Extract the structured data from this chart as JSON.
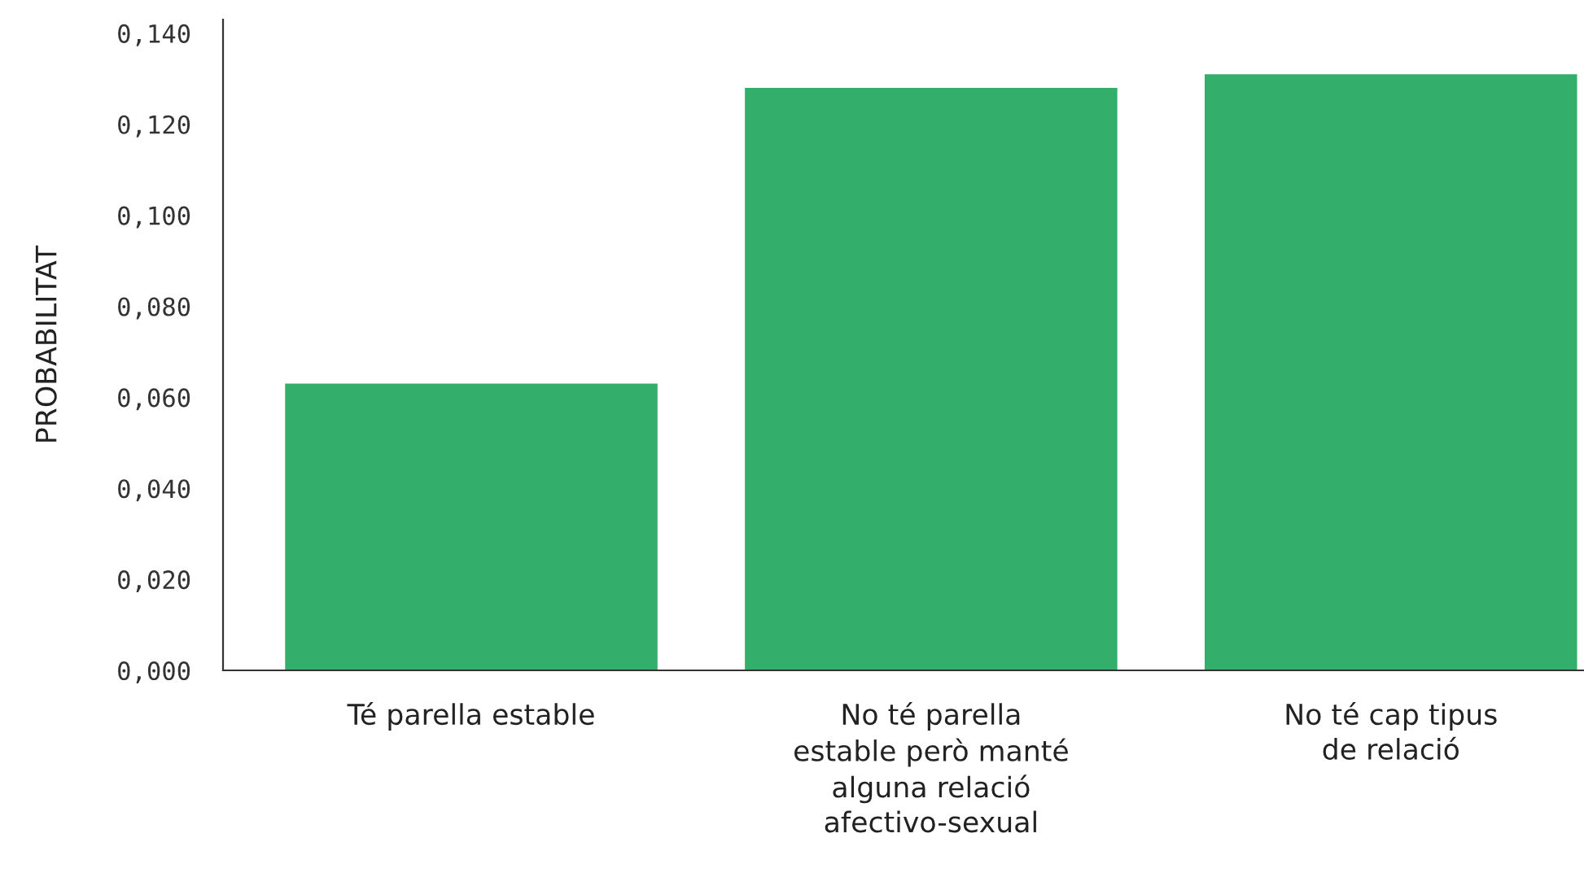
{
  "chart_data": {
    "type": "bar",
    "ylabel": "PROBABILITAT",
    "categories": [
      "Té parella estable",
      "No té parella\nestable però manté\nalguna relació\nafectivo-sexual",
      "No té cap tipus\nde relació"
    ],
    "values": [
      0.063,
      0.128,
      0.131
    ],
    "color": "#34ae6b",
    "ylim": [
      0,
      0.143
    ],
    "yticks": [
      {
        "value": 0,
        "label": "0,000"
      },
      {
        "value": 0.02,
        "label": "0,020"
      },
      {
        "value": 0.04,
        "label": "0,040"
      },
      {
        "value": 0.06,
        "label": "0,060"
      },
      {
        "value": 0.08,
        "label": "0,080"
      },
      {
        "value": 0.1,
        "label": "0,100"
      },
      {
        "value": 0.12,
        "label": "0,120"
      },
      {
        "value": 0.14,
        "label": "0,140"
      }
    ],
    "grid": false,
    "legend": false
  }
}
